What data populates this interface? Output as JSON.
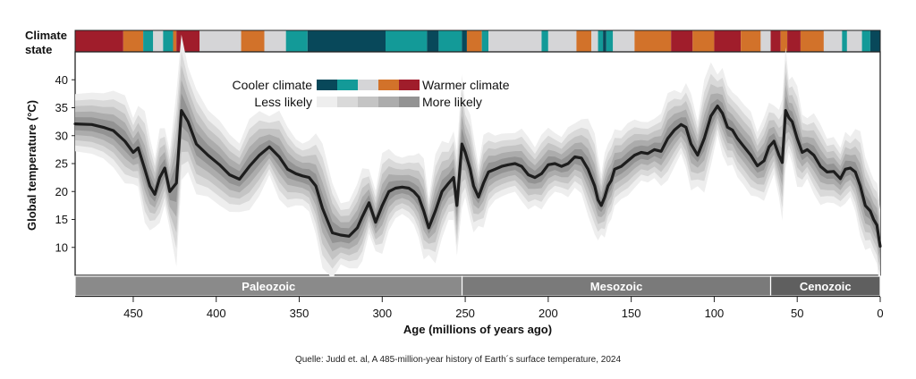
{
  "chart_data": {
    "type": "line",
    "xlabel": "Age (millions of years ago)",
    "ylabel": "Global temperature (°C)",
    "xlim": [
      485,
      0
    ],
    "ylim": [
      5,
      45
    ],
    "x_ticks": [
      450,
      400,
      350,
      300,
      250,
      200,
      150,
      100,
      50,
      0
    ],
    "y_ticks": [
      10,
      15,
      20,
      25,
      30,
      35,
      40
    ],
    "grid": false,
    "climate_state_label": "Climate state",
    "legend": {
      "cooler_label": "Cooler climate",
      "warmer_label": "Warmer climate",
      "less_likely_label": "Less likely",
      "more_likely_label": "More likely",
      "climate_colors": [
        "#08485a",
        "#139a98",
        "#d5d5d7",
        "#d2722a",
        "#a01d2b"
      ],
      "likelihood_colors": [
        "#eeeeee",
        "#d9d9d9",
        "#c4c4c4",
        "#acacac",
        "#939393"
      ]
    },
    "eras": [
      {
        "name": "Paleozoic",
        "start": 485,
        "end": 251.9
      },
      {
        "name": "Mesozoic",
        "start": 251.9,
        "end": 66
      },
      {
        "name": "Cenozoic",
        "start": 66,
        "end": 0
      }
    ],
    "climate_state_bar": [
      {
        "start": 485,
        "end": 456,
        "state": "warm"
      },
      {
        "start": 456,
        "end": 444,
        "state": "warming"
      },
      {
        "start": 444,
        "end": 438,
        "state": "cool"
      },
      {
        "start": 438,
        "end": 432,
        "state": "neutral"
      },
      {
        "start": 432,
        "end": 426,
        "state": "cool"
      },
      {
        "start": 426,
        "end": 424,
        "state": "warming"
      },
      {
        "start": 424,
        "end": 410,
        "state": "warm"
      },
      {
        "start": 410,
        "end": 385,
        "state": "neutral"
      },
      {
        "start": 385,
        "end": 371,
        "state": "warming"
      },
      {
        "start": 371,
        "end": 358,
        "state": "neutral"
      },
      {
        "start": 358,
        "end": 345,
        "state": "cool"
      },
      {
        "start": 345,
        "end": 298,
        "state": "cold"
      },
      {
        "start": 298,
        "end": 273,
        "state": "cool"
      },
      {
        "start": 273,
        "end": 266,
        "state": "cold"
      },
      {
        "start": 266,
        "end": 252,
        "state": "cool"
      },
      {
        "start": 252,
        "end": 249,
        "state": "cold"
      },
      {
        "start": 249,
        "end": 240,
        "state": "warming"
      },
      {
        "start": 240,
        "end": 236,
        "state": "cool"
      },
      {
        "start": 236,
        "end": 204,
        "state": "neutral"
      },
      {
        "start": 204,
        "end": 200,
        "state": "cool"
      },
      {
        "start": 200,
        "end": 183,
        "state": "neutral"
      },
      {
        "start": 183,
        "end": 174,
        "state": "warming"
      },
      {
        "start": 174,
        "end": 170,
        "state": "neutral"
      },
      {
        "start": 170,
        "end": 167,
        "state": "cool"
      },
      {
        "start": 167,
        "end": 165,
        "state": "cold"
      },
      {
        "start": 165,
        "end": 161,
        "state": "cool"
      },
      {
        "start": 161,
        "end": 148,
        "state": "neutral"
      },
      {
        "start": 148,
        "end": 126,
        "state": "warming"
      },
      {
        "start": 126,
        "end": 113,
        "state": "warm"
      },
      {
        "start": 113,
        "end": 100,
        "state": "warming"
      },
      {
        "start": 100,
        "end": 84,
        "state": "warm"
      },
      {
        "start": 84,
        "end": 72,
        "state": "warming"
      },
      {
        "start": 72,
        "end": 66,
        "state": "neutral"
      },
      {
        "start": 66,
        "end": 60,
        "state": "warm"
      },
      {
        "start": 60,
        "end": 56,
        "state": "warming"
      },
      {
        "start": 56,
        "end": 48,
        "state": "warm"
      },
      {
        "start": 48,
        "end": 34,
        "state": "warming"
      },
      {
        "start": 34,
        "end": 23,
        "state": "neutral"
      },
      {
        "start": 23,
        "end": 20,
        "state": "cool"
      },
      {
        "start": 20,
        "end": 11,
        "state": "neutral"
      },
      {
        "start": 11,
        "end": 6,
        "state": "cool"
      },
      {
        "start": 6,
        "end": 0,
        "state": "cold"
      }
    ],
    "state_colors": {
      "cold": "#08485a",
      "cool": "#139a98",
      "neutral": "#d5d5d7",
      "warming": "#d2722a",
      "warm": "#a01d2b"
    },
    "series": [
      {
        "x": [
          485,
          475,
          468,
          462,
          455,
          450,
          447,
          443,
          440,
          437,
          434,
          431,
          428,
          424,
          421,
          417,
          412,
          405,
          398,
          392,
          386,
          380,
          374,
          368,
          362,
          357,
          352,
          348,
          344,
          340,
          336,
          330,
          325,
          320,
          315,
          312,
          308,
          304,
          300,
          296,
          292,
          288,
          284,
          281,
          278,
          275,
          272,
          268,
          264,
          260,
          257,
          255,
          252,
          250,
          247,
          245,
          242,
          239,
          236,
          232,
          228,
          224,
          220,
          216,
          212,
          208,
          204,
          200,
          196,
          192,
          188,
          184,
          180,
          176,
          172,
          170,
          168,
          166,
          164,
          162,
          160,
          156,
          152,
          148,
          144,
          140,
          136,
          132,
          128,
          124,
          120,
          117,
          114,
          110,
          106,
          102,
          98,
          95,
          92,
          89,
          86,
          82,
          78,
          74,
          70,
          67,
          64,
          61,
          59,
          57,
          55,
          53,
          50,
          47,
          44,
          40,
          36,
          32,
          28,
          24,
          21,
          18,
          15,
          12,
          9,
          6,
          4,
          2,
          1,
          0
        ],
        "y": [
          32.1,
          32,
          31.5,
          30.9,
          29,
          27,
          27.8,
          24,
          21,
          19.5,
          22.5,
          24.2,
          20,
          21.5,
          34.5,
          32.5,
          28.5,
          26.5,
          24.8,
          23,
          22.2,
          24.5,
          26.5,
          28,
          26.2,
          24,
          23.2,
          22.8,
          22.5,
          21,
          17,
          12.6,
          12.2,
          12,
          13.5,
          15.5,
          18,
          14.5,
          17.5,
          20,
          20.6,
          20.8,
          20.6,
          20,
          19,
          16.5,
          13.5,
          16.5,
          20,
          21.5,
          22.5,
          17.5,
          28.5,
          27,
          24,
          21,
          19,
          21.5,
          23.5,
          24,
          24.5,
          24.8,
          25,
          24.5,
          23,
          22.5,
          23.2,
          24.8,
          25,
          24.5,
          25,
          26.2,
          26,
          24,
          21,
          18.5,
          17.5,
          19,
          21,
          22,
          24,
          24.5,
          25.5,
          26.5,
          27,
          26.8,
          27.5,
          27.2,
          29.5,
          31,
          32,
          31.5,
          28.5,
          26.5,
          29.5,
          33.5,
          35.3,
          34,
          31.5,
          31,
          29.5,
          28,
          26.5,
          24.6,
          25.5,
          28,
          29,
          26.5,
          25.2,
          34.5,
          33.2,
          32.5,
          29.5,
          27,
          27.5,
          26.5,
          24.5,
          23.5,
          23.6,
          22.3,
          24,
          24.2,
          23.5,
          21,
          17.5,
          16.5,
          15,
          14,
          12,
          10.2
        ]
      }
    ]
  },
  "source_note": "Quelle:  Judd et. al, A 485-million-year history of Earth´s surface temperature, 2024"
}
